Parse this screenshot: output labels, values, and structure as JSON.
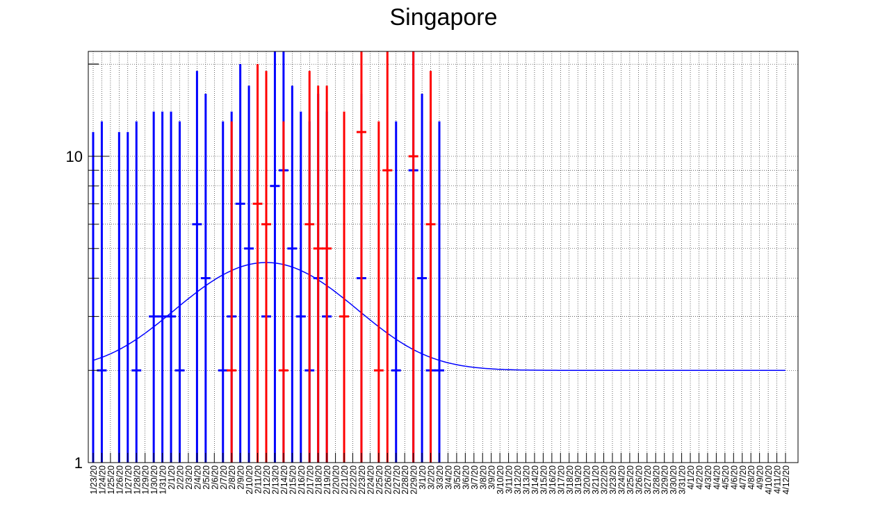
{
  "chart_data": {
    "type": "scatter",
    "title": "Singapore",
    "xlabel": "",
    "ylabel": "",
    "y_scale": "log",
    "ylim": [
      1,
      22
    ],
    "y_ticks": [
      {
        "value": 1,
        "label": "1"
      },
      {
        "value": 10,
        "label": "10"
      }
    ],
    "grid": true,
    "x_labels": [
      "1/23/20",
      "1/24/20",
      "1/25/20",
      "1/26/20",
      "1/27/20",
      "1/28/20",
      "1/29/20",
      "1/30/20",
      "1/31/20",
      "2/1/20",
      "2/2/20",
      "2/3/20",
      "2/4/20",
      "2/5/20",
      "2/6/20",
      "2/7/20",
      "2/8/20",
      "2/9/20",
      "2/10/20",
      "2/11/20",
      "2/12/20",
      "2/13/20",
      "2/14/20",
      "2/15/20",
      "2/16/20",
      "2/17/20",
      "2/18/20",
      "2/19/20",
      "2/20/20",
      "2/21/20",
      "2/22/20",
      "2/23/20",
      "2/24/20",
      "2/25/20",
      "2/26/20",
      "2/27/20",
      "2/28/20",
      "2/29/20",
      "3/1/20",
      "3/2/20",
      "3/3/20",
      "3/4/20",
      "3/5/20",
      "3/6/20",
      "3/7/20",
      "3/8/20",
      "3/9/20",
      "3/10/20",
      "3/11/20",
      "3/12/20",
      "3/13/20",
      "3/14/20",
      "3/15/20",
      "3/16/20",
      "3/17/20",
      "3/18/20",
      "3/19/20",
      "3/20/20",
      "3/21/20",
      "3/22/20",
      "3/23/20",
      "3/24/20",
      "3/25/20",
      "3/26/20",
      "3/27/20",
      "3/28/20",
      "3/29/20",
      "3/30/20",
      "3/31/20",
      "4/1/20",
      "4/2/20",
      "4/3/20",
      "4/4/20",
      "4/5/20",
      "4/6/20",
      "4/7/20",
      "4/8/20",
      "4/9/20",
      "4/10/20",
      "4/11/20",
      "4/12/20"
    ],
    "series": [
      {
        "color": "#0000ff",
        "points": [
          {
            "x": "1/23/20",
            "y": 1,
            "hi": 12
          },
          {
            "x": "1/24/20",
            "y": 2,
            "hi": 13
          },
          {
            "x": "1/26/20",
            "y": 1,
            "hi": 12
          },
          {
            "x": "1/27/20",
            "y": 1,
            "hi": 12
          },
          {
            "x": "1/28/20",
            "y": 2,
            "hi": 13
          },
          {
            "x": "1/30/20",
            "y": 3,
            "hi": 14
          },
          {
            "x": "1/31/20",
            "y": 3,
            "hi": 14
          },
          {
            "x": "2/1/20",
            "y": 3,
            "hi": 14
          },
          {
            "x": "2/2/20",
            "y": 2,
            "hi": 13
          },
          {
            "x": "2/4/20",
            "y": 6,
            "hi": 19
          },
          {
            "x": "2/5/20",
            "y": 4,
            "hi": 16
          },
          {
            "x": "2/7/20",
            "y": 2,
            "hi": 13
          },
          {
            "x": "2/8/20",
            "y": 3,
            "hi": 14
          },
          {
            "x": "2/9/20",
            "y": 7,
            "hi": 20
          },
          {
            "x": "2/10/20",
            "y": 5,
            "hi": 17
          },
          {
            "x": "2/12/20",
            "y": 3,
            "hi": 14
          },
          {
            "x": "2/13/20",
            "y": 8,
            "hi": 22
          },
          {
            "x": "2/14/20",
            "y": 9,
            "hi": 22
          },
          {
            "x": "2/15/20",
            "y": 5,
            "hi": 17
          },
          {
            "x": "2/16/20",
            "y": 3,
            "hi": 14
          },
          {
            "x": "2/17/20",
            "y": 2,
            "hi": 13
          },
          {
            "x": "2/18/20",
            "y": 4,
            "hi": 16
          },
          {
            "x": "2/19/20",
            "y": 3,
            "hi": 14
          },
          {
            "x": "2/23/20",
            "y": 4,
            "hi": 16
          },
          {
            "x": "2/27/20",
            "y": 2,
            "hi": 13
          },
          {
            "x": "2/29/20",
            "y": 9,
            "hi": 22
          },
          {
            "x": "3/1/20",
            "y": 4,
            "hi": 16
          },
          {
            "x": "3/2/20",
            "y": 2,
            "hi": 13
          },
          {
            "x": "3/3/20",
            "y": 2,
            "hi": 13
          }
        ]
      },
      {
        "color": "#ff0000",
        "points": [
          {
            "x": "2/8/20",
            "y": 2,
            "hi": 13
          },
          {
            "x": "2/11/20",
            "y": 7,
            "hi": 20
          },
          {
            "x": "2/12/20",
            "y": 6,
            "hi": 19
          },
          {
            "x": "2/14/20",
            "y": 2,
            "hi": 13
          },
          {
            "x": "2/17/20",
            "y": 6,
            "hi": 19
          },
          {
            "x": "2/18/20",
            "y": 5,
            "hi": 17
          },
          {
            "x": "2/19/20",
            "y": 5,
            "hi": 17
          },
          {
            "x": "2/21/20",
            "y": 3,
            "hi": 14
          },
          {
            "x": "2/23/20",
            "y": 12,
            "hi": 22
          },
          {
            "x": "2/25/20",
            "y": 2,
            "hi": 13
          },
          {
            "x": "2/26/20",
            "y": 9,
            "hi": 22
          },
          {
            "x": "2/29/20",
            "y": 10,
            "hi": 22
          },
          {
            "x": "3/2/20",
            "y": 6,
            "hi": 19
          }
        ]
      }
    ],
    "fit": {
      "color": "#0000ff",
      "baseline": 2.0,
      "peak": 4.5,
      "peak_x": "2/12/20",
      "width_days": 8.5
    }
  }
}
